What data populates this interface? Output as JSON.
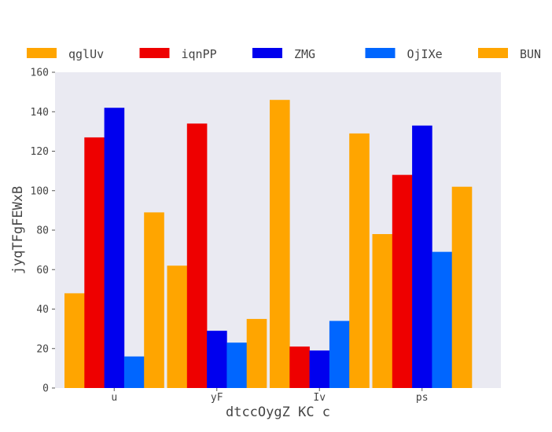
{
  "chart_data": {
    "type": "bar",
    "title": "",
    "xlabel": "dtccOygZ KC c",
    "ylabel": "jyqTFgFEWxB",
    "categories": [
      "u",
      "yF",
      "Iv",
      "ps"
    ],
    "series": [
      {
        "name": "qglUv",
        "color": "#ffa500",
        "values": [
          48,
          62,
          146,
          78
        ]
      },
      {
        "name": "iqnPP",
        "color": "#ee0000",
        "values": [
          127,
          134,
          21,
          108
        ]
      },
      {
        "name": "ZMG",
        "color": "#0000ee",
        "values": [
          142,
          29,
          19,
          133
        ]
      },
      {
        "name": "OjIXe",
        "color": "#0066ff",
        "values": [
          16,
          23,
          34,
          69
        ]
      },
      {
        "name": "BUN",
        "color": "#ffa500",
        "values": [
          89,
          35,
          129,
          102
        ]
      }
    ],
    "ylim": [
      0,
      160
    ],
    "yticks": [
      0,
      20,
      40,
      60,
      80,
      100,
      120,
      140,
      160
    ],
    "grid": false,
    "legend_position": "top",
    "plot_background": "#eaeaf2"
  }
}
